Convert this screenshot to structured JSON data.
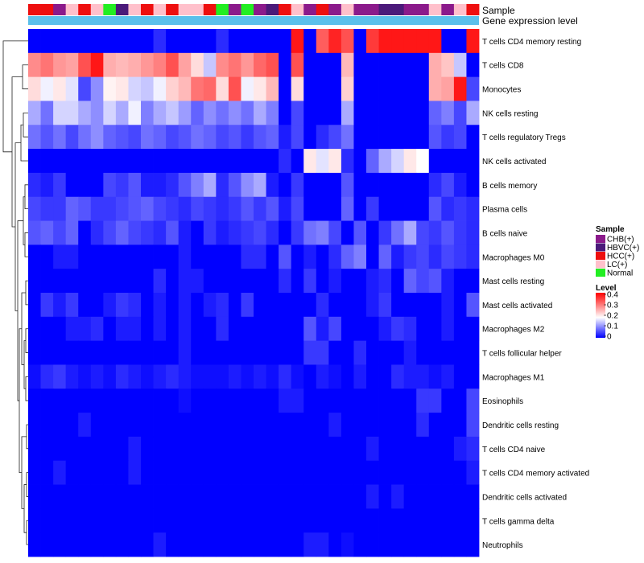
{
  "chart_data": {
    "type": "heatmap",
    "title": "",
    "annotation_rows": [
      "Sample",
      "Gene expression level"
    ],
    "sample_annotation": [
      "HCC(+)",
      "HCC(+)",
      "CHB(+)",
      "LC(+)",
      "HCC(+)",
      "LC(+)",
      "Normal",
      "HBVC(+)",
      "LC(+)",
      "HCC(+)",
      "LC(+)",
      "HCC(+)",
      "LC(+)",
      "LC(+)",
      "HCC(+)",
      "Normal",
      "CHB(+)",
      "Normal",
      "CHB(+)",
      "HBVC(+)",
      "HCC(+)",
      "LC(+)",
      "CHB(+)",
      "HCC(+)",
      "CHB(+)",
      "LC(+)",
      "CHB(+)",
      "CHB(+)",
      "HBVC(+)",
      "HBVC(+)",
      "CHB(+)",
      "CHB(+)",
      "LC(+)",
      "CHB(+)",
      "LC(+)",
      "HCC(+)"
    ],
    "rows": [
      "T cells CD4 memory resting",
      "T cells CD8",
      "Monocytes",
      "NK cells resting",
      "T cells regulatory  Tregs",
      "NK cells activated",
      "B cells memory",
      "Plasma cells",
      "B cells naive",
      "Macrophages M0",
      "Mast cells resting",
      "Mast cells activated",
      "Macrophages M2",
      "T cells follicular helper",
      "Macrophages M1",
      "Eosinophils",
      "Dendritic cells resting",
      "T cells CD4 naive",
      "T cells CD4 memory activated",
      "Dendritic cells activated",
      "T cells gamma delta",
      "Neutrophils"
    ],
    "values": [
      [
        0,
        0,
        0,
        0,
        0,
        0,
        0,
        0,
        0,
        0,
        0.03,
        0,
        0,
        0,
        0,
        0.03,
        0,
        0,
        0,
        0,
        0,
        0.38,
        0,
        0.32,
        0.37,
        0.33,
        0,
        0.35,
        0.38,
        0.38,
        0.38,
        0.38,
        0.38,
        0,
        0,
        0.38
      ],
      [
        0.28,
        0.3,
        0.27,
        0.26,
        0.33,
        0.38,
        0.25,
        0.24,
        0.25,
        0.27,
        0.29,
        0.33,
        0.26,
        0.21,
        0.14,
        0.28,
        0.3,
        0.27,
        0.31,
        0.33,
        0,
        0.33,
        0,
        0,
        0,
        0.24,
        0,
        0,
        0,
        0,
        0,
        0,
        0.25,
        0.23,
        0.14,
        0
      ],
      [
        0.21,
        0.17,
        0.2,
        0.16,
        0.05,
        0.1,
        0.19,
        0.2,
        0.15,
        0.14,
        0.17,
        0.22,
        0.24,
        0.3,
        0.31,
        0.21,
        0.33,
        0.17,
        0.2,
        0.24,
        0,
        0.21,
        0,
        0,
        0,
        0.22,
        0,
        0,
        0,
        0,
        0,
        0,
        0.25,
        0.26,
        0.38,
        0.05
      ],
      [
        0.12,
        0.08,
        0.15,
        0.15,
        0.12,
        0.1,
        0.15,
        0.12,
        0.17,
        0.09,
        0.12,
        0.14,
        0.11,
        0.07,
        0.1,
        0.08,
        0.1,
        0.08,
        0.12,
        0.09,
        0,
        0.05,
        0,
        0,
        0,
        0.12,
        0,
        0,
        0,
        0,
        0,
        0,
        0.07,
        0.09,
        0.05,
        0.12
      ],
      [
        0.08,
        0.06,
        0.08,
        0.05,
        0.08,
        0.1,
        0.07,
        0.06,
        0.05,
        0.08,
        0.07,
        0.05,
        0.06,
        0.08,
        0.07,
        0.05,
        0.06,
        0.04,
        0.06,
        0.07,
        0.02,
        0.05,
        0,
        0.03,
        0.05,
        0.08,
        0,
        0,
        0,
        0,
        0,
        0,
        0.06,
        0.04,
        0.05,
        0
      ],
      [
        0,
        0,
        0,
        0,
        0,
        0,
        0,
        0,
        0,
        0,
        0,
        0,
        0,
        0,
        0,
        0,
        0,
        0,
        0,
        0,
        0.03,
        0,
        0.2,
        0.16,
        0.2,
        0.03,
        0,
        0.07,
        0.12,
        0.15,
        0.2,
        0.18,
        0,
        0,
        0,
        0
      ],
      [
        0.03,
        0.02,
        0.04,
        0,
        0,
        0,
        0.05,
        0.04,
        0.06,
        0.02,
        0.02,
        0.03,
        0.06,
        0.09,
        0.12,
        0.03,
        0.06,
        0.1,
        0.12,
        0.02,
        0,
        0.04,
        0,
        0,
        0,
        0.06,
        0,
        0,
        0,
        0,
        0,
        0,
        0.03,
        0.05,
        0.02,
        0
      ],
      [
        0.05,
        0.04,
        0.04,
        0.07,
        0.06,
        0.04,
        0.04,
        0.05,
        0.06,
        0.07,
        0.05,
        0.04,
        0.03,
        0.05,
        0.04,
        0.03,
        0.04,
        0.06,
        0.04,
        0.06,
        0.02,
        0.05,
        0,
        0,
        0,
        0.07,
        0,
        0.04,
        0,
        0,
        0,
        0,
        0.06,
        0.03,
        0.04,
        0.03
      ],
      [
        0.06,
        0.07,
        0.05,
        0.07,
        0,
        0.03,
        0.05,
        0.07,
        0.05,
        0.04,
        0.03,
        0.06,
        0.02,
        0,
        0.04,
        0.02,
        0.03,
        0.04,
        0.05,
        0.03,
        0,
        0.04,
        0.08,
        0.09,
        0.05,
        0,
        0.06,
        0,
        0.04,
        0.08,
        0.12,
        0.05,
        0.04,
        0.06,
        0.04,
        0.03
      ],
      [
        0,
        0,
        0.02,
        0.02,
        0,
        0,
        0,
        0,
        0,
        0,
        0,
        0,
        0.02,
        0,
        0,
        0,
        0,
        0.03,
        0.03,
        0,
        0.06,
        0,
        0.02,
        0,
        0.03,
        0.07,
        0.09,
        0,
        0.07,
        0.02,
        0.04,
        0.05,
        0.03,
        0.05,
        0.04,
        0.03
      ],
      [
        0,
        0,
        0,
        0,
        0,
        0,
        0,
        0,
        0,
        0,
        0.03,
        0,
        0.02,
        0.02,
        0,
        0,
        0,
        0,
        0,
        0,
        0.03,
        0,
        0.04,
        0,
        0.02,
        0,
        0,
        0.02,
        0.03,
        0,
        0.07,
        0.05,
        0.06,
        0.02,
        0,
        0
      ],
      [
        0,
        0.04,
        0.02,
        0.04,
        0,
        0,
        0.02,
        0.04,
        0.03,
        0,
        0.02,
        0,
        0.02,
        0,
        0.02,
        0.03,
        0,
        0.04,
        0,
        0,
        0,
        0,
        0,
        0.03,
        0,
        0,
        0,
        0.02,
        0.04,
        0,
        0,
        0,
        0,
        0.02,
        0,
        0.06
      ],
      [
        0,
        0,
        0,
        0.02,
        0.02,
        0.03,
        0,
        0.02,
        0.02,
        0,
        0.02,
        0,
        0.02,
        0,
        0,
        0.03,
        0,
        0,
        0,
        0,
        0,
        0,
        0.06,
        0.02,
        0.05,
        0,
        0,
        0,
        0.02,
        0.04,
        0.03,
        0,
        0,
        0.02,
        0,
        0
      ],
      [
        0,
        0,
        0,
        0,
        0,
        0,
        0,
        0,
        0,
        0,
        0,
        0,
        0.02,
        0,
        0,
        0,
        0,
        0,
        0,
        0,
        0,
        0,
        0.04,
        0.04,
        0,
        0,
        0.03,
        0,
        0,
        0,
        0.02,
        0,
        0,
        0,
        0,
        0
      ],
      [
        0.01,
        0.03,
        0.04,
        0.02,
        0.01,
        0.02,
        0.01,
        0.03,
        0.02,
        0.01,
        0.02,
        0.03,
        0.02,
        0.01,
        0.01,
        0.01,
        0.02,
        0.01,
        0.02,
        0.01,
        0.03,
        0.01,
        0,
        0.02,
        0.01,
        0,
        0.02,
        0,
        0,
        0.03,
        0.02,
        0.02,
        0.01,
        0.02,
        0,
        0
      ],
      [
        0,
        0,
        0,
        0,
        0,
        0,
        0,
        0,
        0,
        0,
        0,
        0,
        0.01,
        0,
        0,
        0,
        0,
        0,
        0,
        0,
        0.02,
        0.02,
        0,
        0,
        0,
        0,
        0,
        0,
        0,
        0,
        0,
        0.04,
        0.04,
        0,
        0,
        0.05
      ],
      [
        0,
        0,
        0,
        0,
        0.02,
        0,
        0,
        0,
        0,
        0,
        0,
        0,
        0,
        0,
        0,
        0,
        0,
        0,
        0,
        0,
        0,
        0,
        0,
        0,
        0.02,
        0,
        0,
        0,
        0,
        0,
        0,
        0.03,
        0,
        0,
        0,
        0.05
      ],
      [
        0,
        0,
        0,
        0,
        0,
        0,
        0,
        0,
        0.02,
        0,
        0,
        0,
        0,
        0,
        0,
        0,
        0,
        0,
        0,
        0,
        0,
        0,
        0,
        0,
        0,
        0,
        0,
        0.02,
        0,
        0,
        0,
        0,
        0,
        0,
        0.02,
        0.03
      ],
      [
        0,
        0,
        0.02,
        0,
        0,
        0,
        0,
        0,
        0.02,
        0,
        0,
        0,
        0,
        0,
        0,
        0,
        0,
        0,
        0,
        0,
        0,
        0,
        0,
        0,
        0,
        0,
        0,
        0,
        0,
        0,
        0,
        0,
        0,
        0,
        0,
        0.02
      ],
      [
        0,
        0,
        0,
        0,
        0,
        0,
        0,
        0,
        0,
        0,
        0,
        0,
        0,
        0,
        0,
        0,
        0,
        0,
        0,
        0,
        0,
        0,
        0,
        0,
        0,
        0,
        0,
        0.02,
        0,
        0.02,
        0,
        0,
        0,
        0,
        0,
        0
      ],
      [
        0,
        0,
        0,
        0,
        0,
        0,
        0,
        0,
        0,
        0,
        0,
        0,
        0,
        0,
        0,
        0,
        0,
        0,
        0,
        0,
        0,
        0,
        0,
        0,
        0,
        0,
        0,
        0,
        0,
        0,
        0,
        0,
        0,
        0,
        0,
        0
      ],
      [
        0,
        0,
        0,
        0,
        0,
        0,
        0,
        0,
        0,
        0,
        0.02,
        0,
        0,
        0,
        0,
        0,
        0,
        0,
        0,
        0,
        0,
        0,
        0.02,
        0.02,
        0,
        0.01,
        0,
        0,
        0,
        0,
        0,
        0,
        0,
        0,
        0,
        0
      ]
    ],
    "legend_sample": {
      "title": "Sample",
      "items": [
        {
          "label": "CHB(+)",
          "color": "#8b1a8b"
        },
        {
          "label": "HBVC(+)",
          "color": "#4b1a7a"
        },
        {
          "label": "HCC(+)",
          "color": "#ee0f0f"
        },
        {
          "label": "LC(+)",
          "color": "#ffc0cb"
        },
        {
          "label": "Normal",
          "color": "#22ee22"
        }
      ]
    },
    "legend_level": {
      "title": "Level",
      "range": [
        0,
        0.4
      ],
      "ticks": [
        "0.4",
        "0.3",
        "0.2",
        "0.1",
        "0"
      ]
    },
    "gene_expression_bar_color": "#5bc0eb",
    "colorscale": [
      "#0000ff",
      "#ffffff",
      "#ff0000"
    ]
  }
}
